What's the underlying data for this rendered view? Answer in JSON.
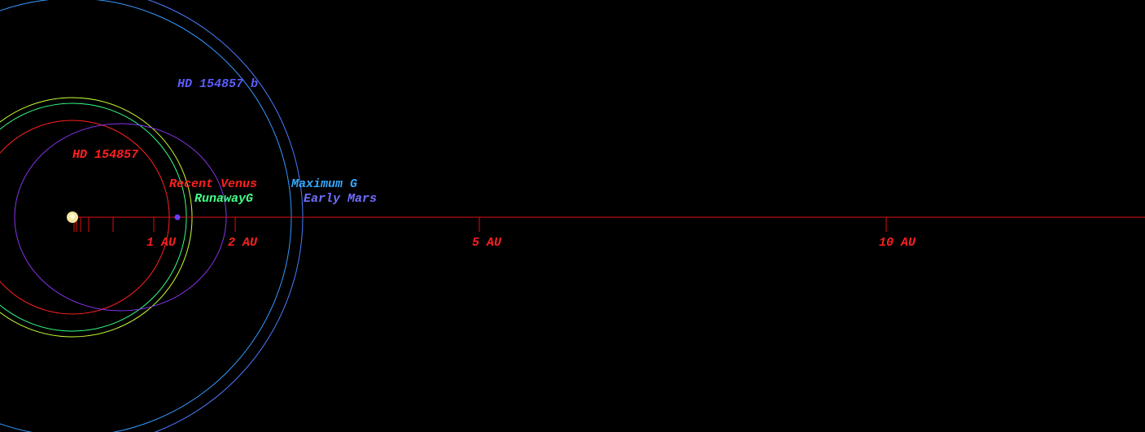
{
  "planet": {
    "name": "HD 154857 b"
  },
  "star": {
    "name": "HD 154857"
  },
  "zones": {
    "recent_venus": "Recent Venus",
    "maximum_g": "Maximum G",
    "runaway_g": "RunawayG",
    "early_mars": "Early Mars"
  },
  "axis": {
    "labels": [
      "1 AU",
      "2 AU",
      "5 AU",
      "10 AU"
    ]
  }
}
